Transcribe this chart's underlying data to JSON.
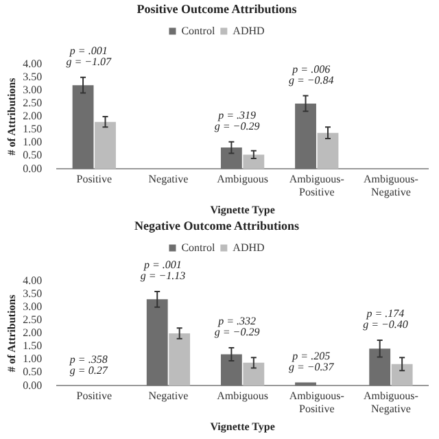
{
  "chart_data": [
    {
      "type": "bar",
      "title": "Positive Outcome Attributions",
      "xlabel": "Vignette Type",
      "ylabel": "# of Attributions",
      "categories": [
        "Positive",
        "Negative",
        "Ambiguous",
        "Ambiguous-Positive",
        "Ambiguous-Negative"
      ],
      "series": [
        {
          "name": "Control",
          "color": "#6e6e6e",
          "values": [
            3.2,
            null,
            0.82,
            2.5,
            null
          ],
          "errors": [
            0.3,
            null,
            0.22,
            0.3,
            null
          ]
        },
        {
          "name": "ADHD",
          "color": "#bcbcbc",
          "values": [
            1.8,
            null,
            0.55,
            1.38,
            null
          ],
          "errors": [
            0.2,
            null,
            0.15,
            0.22,
            null
          ]
        }
      ],
      "ylim": [
        0,
        4
      ],
      "yticks": [
        {
          "value": 0,
          "label": "0.00"
        },
        {
          "value": 0.5,
          "label": "0.50"
        },
        {
          "value": 1,
          "label": "1.00"
        },
        {
          "value": 1.5,
          "label": "1.50"
        },
        {
          "value": 2,
          "label": "2.00"
        },
        {
          "value": 2.5,
          "label": "2.50"
        },
        {
          "value": 3,
          "label": "3.00"
        },
        {
          "value": 3.5,
          "label": "3.50"
        },
        {
          "value": 4,
          "label": "4.00"
        }
      ],
      "legend": "top",
      "grid": false,
      "annotations": [
        "p = .001\ng = −1.07",
        "p = .319\ng = −0.29",
        "p = .006\ng = −0.84"
      ]
    },
    {
      "type": "bar",
      "title": "Negative Outcome Attributions",
      "xlabel": "Vignette Type",
      "ylabel": "# of Attributions",
      "categories": [
        "Positive",
        "Negative",
        "Ambiguous",
        "Ambiguous-Positive",
        "Ambiguous-Negative"
      ],
      "series": [
        {
          "name": "Control",
          "color": "#6e6e6e",
          "values": [
            null,
            3.3,
            1.2,
            0.13,
            1.42
          ],
          "errors": [
            null,
            0.3,
            0.25,
            null,
            0.32
          ]
        },
        {
          "name": "ADHD",
          "color": "#bcbcbc",
          "values": [
            null,
            2.0,
            0.88,
            null,
            0.83
          ],
          "errors": [
            null,
            0.2,
            0.2,
            null,
            0.25
          ]
        }
      ],
      "ylim": [
        0,
        4
      ],
      "yticks": [
        {
          "value": 0,
          "label": "0.00"
        },
        {
          "value": 0.5,
          "label": "0.50"
        },
        {
          "value": 1,
          "label": "1.00"
        },
        {
          "value": 1.5,
          "label": "1.50"
        },
        {
          "value": 2,
          "label": "2.00"
        },
        {
          "value": 2.5,
          "label": "2.50"
        },
        {
          "value": 3,
          "label": "3.00"
        },
        {
          "value": 3.5,
          "label": "3.50"
        },
        {
          "value": 4,
          "label": "4.00"
        }
      ],
      "legend": "top",
      "grid": false,
      "annotations": [
        "p = .358\ng = 0.27",
        "p = .001\ng = −1.13",
        "p = .332\ng = −0.29",
        "p = .205\ng = −0.37",
        "p = .174\ng = −0.40"
      ]
    }
  ]
}
